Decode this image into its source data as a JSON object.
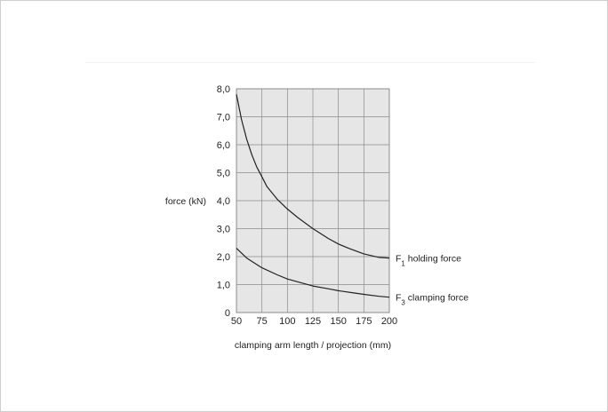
{
  "chart_data": {
    "type": "line",
    "xlabel": "clamping arm length / projection (mm)",
    "ylabel": "force (kN)",
    "xlim": [
      50,
      200
    ],
    "ylim": [
      0,
      8
    ],
    "x_ticks": [
      "50",
      "75",
      "100",
      "125",
      "150",
      "175",
      "200"
    ],
    "y_ticks": [
      "0",
      "1,0",
      "2,0",
      "3,0",
      "4,0",
      "5,0",
      "6,0",
      "7,0",
      "8,0"
    ],
    "grid": true,
    "plot_background": "#e6e6e6",
    "line_color": "#222222",
    "series": [
      {
        "label_main": "F",
        "label_sub": "1",
        "label_rest": " holding force",
        "x": [
          50,
          55,
          60,
          65,
          70,
          75,
          80,
          90,
          100,
          110,
          125,
          140,
          150,
          160,
          175,
          190,
          200
        ],
        "y": [
          7.8,
          6.9,
          6.2,
          5.65,
          5.2,
          4.85,
          4.5,
          4.05,
          3.7,
          3.4,
          3.0,
          2.65,
          2.45,
          2.3,
          2.1,
          1.97,
          1.95
        ]
      },
      {
        "label_main": "F",
        "label_sub": "3",
        "label_rest": " clamping force",
        "x": [
          50,
          60,
          75,
          90,
          100,
          115,
          125,
          140,
          150,
          165,
          175,
          190,
          200
        ],
        "y": [
          2.3,
          1.95,
          1.6,
          1.35,
          1.2,
          1.05,
          0.95,
          0.85,
          0.78,
          0.7,
          0.65,
          0.58,
          0.55
        ]
      }
    ]
  }
}
